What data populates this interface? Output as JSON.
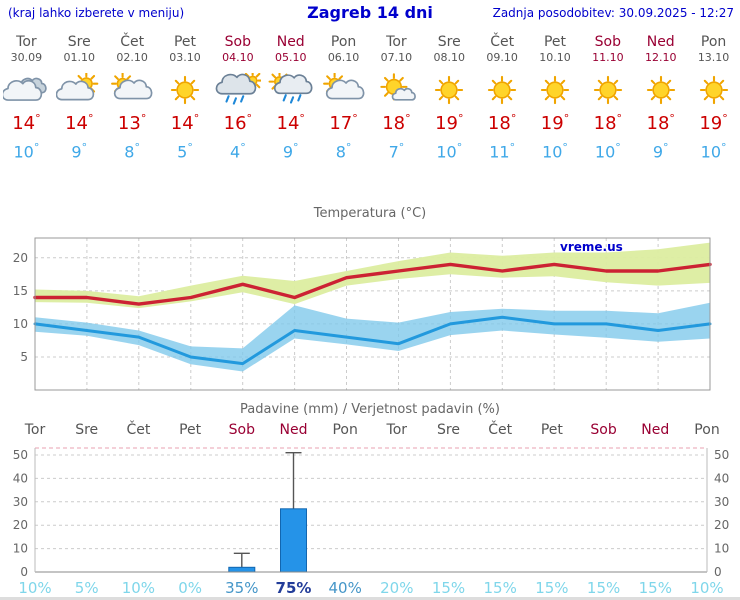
{
  "header": {
    "left_note": "(kraj lahko izberete v meniju)",
    "title": "Zagreb 14 dni",
    "updated": "Zadnja posodobitev: 30.09.2025 - 12:27"
  },
  "forecast": {
    "days": [
      {
        "name": "Tor",
        "date": "30.09",
        "weekend": false,
        "icon": "cloudy",
        "tmax": 14,
        "tmin": 10
      },
      {
        "name": "Sre",
        "date": "01.10",
        "weekend": false,
        "icon": "partly-cloudy",
        "tmax": 14,
        "tmin": 9
      },
      {
        "name": "Čet",
        "date": "02.10",
        "weekend": false,
        "icon": "mostly-cloudy",
        "tmax": 13,
        "tmin": 8
      },
      {
        "name": "Pet",
        "date": "03.10",
        "weekend": false,
        "icon": "sunny",
        "tmax": 14,
        "tmin": 5
      },
      {
        "name": "Sob",
        "date": "04.10",
        "weekend": true,
        "icon": "rain",
        "tmax": 16,
        "tmin": 4
      },
      {
        "name": "Ned",
        "date": "05.10",
        "weekend": true,
        "icon": "showers",
        "tmax": 14,
        "tmin": 9
      },
      {
        "name": "Pon",
        "date": "06.10",
        "weekend": false,
        "icon": "mostly-cloudy",
        "tmax": 17,
        "tmin": 8
      },
      {
        "name": "Tor",
        "date": "07.10",
        "weekend": false,
        "icon": "sun-cloud",
        "tmax": 18,
        "tmin": 7
      },
      {
        "name": "Sre",
        "date": "08.10",
        "weekend": false,
        "icon": "sunny",
        "tmax": 19,
        "tmin": 10
      },
      {
        "name": "Čet",
        "date": "09.10",
        "weekend": false,
        "icon": "sunny",
        "tmax": 18,
        "tmin": 11
      },
      {
        "name": "Pet",
        "date": "10.10",
        "weekend": false,
        "icon": "sunny",
        "tmax": 19,
        "tmin": 10
      },
      {
        "name": "Sob",
        "date": "11.10",
        "weekend": true,
        "icon": "sunny",
        "tmax": 18,
        "tmin": 10
      },
      {
        "name": "Ned",
        "date": "12.10",
        "weekend": true,
        "icon": "sunny",
        "tmax": 18,
        "tmin": 9
      },
      {
        "name": "Pon",
        "date": "13.10",
        "weekend": false,
        "icon": "sunny",
        "tmax": 19,
        "tmin": 10
      }
    ]
  },
  "chart_data": [
    {
      "type": "line",
      "title": "Temperatura (°C)",
      "watermark": "vreme.us",
      "x_labels": [
        "Tor 30.09",
        "Sre 01.10",
        "Čet 02.10",
        "Pet 03.10",
        "Sob 04.10",
        "Ned 05.10",
        "Pon 06.10",
        "Tor 07.10",
        "Sre 08.10",
        "Čet 09.10",
        "Pet 10.10",
        "Sob 11.10",
        "Ned 12.10",
        "Pon 13.10"
      ],
      "ylim": [
        0,
        23
      ],
      "yticks": [
        5,
        10,
        15,
        20
      ],
      "grid": true,
      "series": [
        {
          "name": "max_temp",
          "values": [
            14,
            14,
            13,
            14,
            16,
            14,
            17,
            18,
            19,
            18,
            19,
            18,
            18,
            19
          ]
        },
        {
          "name": "max_range_upper",
          "values": [
            15.2,
            15,
            14.2,
            15.8,
            17.3,
            16.5,
            18,
            19.5,
            20.8,
            20.3,
            20.8,
            20.8,
            21.3,
            22.3
          ]
        },
        {
          "name": "max_range_lower",
          "values": [
            13.3,
            13.2,
            12.4,
            13.4,
            14.8,
            13,
            15.8,
            16.8,
            17.5,
            17,
            17.2,
            16.3,
            15.8,
            16.2
          ]
        },
        {
          "name": "min_temp",
          "values": [
            10,
            9,
            8,
            5,
            4,
            9,
            8,
            7,
            10,
            11,
            10,
            10,
            9,
            10
          ]
        },
        {
          "name": "min_range_upper",
          "values": [
            11,
            10.2,
            9,
            6.6,
            6.3,
            12.8,
            10.8,
            10.2,
            11.8,
            12.3,
            12,
            12,
            11.6,
            13.2
          ]
        },
        {
          "name": "min_range_lower",
          "values": [
            8.8,
            8.2,
            6.8,
            3.9,
            2.8,
            7.8,
            6.9,
            5.9,
            8.3,
            9,
            8.4,
            7.9,
            7.3,
            7.8
          ]
        }
      ]
    },
    {
      "type": "bar",
      "title": "Padavine (mm) / Verjetnost padavin (%)",
      "categories": [
        "Tor",
        "Sre",
        "Čet",
        "Pet",
        "Sob",
        "Ned",
        "Pon",
        "Tor",
        "Sre",
        "Čet",
        "Pet",
        "Sob",
        "Ned",
        "Pon"
      ],
      "weekend": [
        false,
        false,
        false,
        false,
        true,
        true,
        false,
        false,
        false,
        false,
        false,
        true,
        true,
        false
      ],
      "values_mm": [
        0,
        0,
        0,
        0,
        2,
        27,
        0,
        0,
        0,
        0,
        0,
        0,
        0,
        0
      ],
      "whisker_low": [
        null,
        null,
        null,
        null,
        0,
        13,
        null,
        null,
        null,
        null,
        null,
        null,
        null,
        null
      ],
      "whisker_high": [
        null,
        null,
        null,
        null,
        8,
        51,
        null,
        null,
        null,
        null,
        null,
        null,
        null,
        null
      ],
      "probabilities_pct": [
        10,
        5,
        10,
        0,
        35,
        75,
        40,
        20,
        15,
        15,
        15,
        15,
        15,
        10
      ],
      "ylim": [
        0,
        53
      ],
      "yticks": [
        0,
        10,
        20,
        30,
        40,
        50
      ]
    }
  ],
  "colors": {
    "link_blue": "#0000cc",
    "day_label": "#555555",
    "weekend_label": "#990033",
    "tmax_red": "#cc0000",
    "tmin_blue": "#3fa8e8",
    "temp_max_line": "#cc2233",
    "temp_max_band": "#dceda0",
    "temp_min_line": "#2299dd",
    "temp_min_band": "#7ec8ea",
    "bar_fill": "#2593e8",
    "bar_border": "#1266b0",
    "whisker": "#555555",
    "prob_low": "#7fd6ea",
    "prob_mid": "#4596c8",
    "prob_high": "#223c99",
    "grid": "#cccccc",
    "axis": "#999999",
    "top_dashed_pink": "#e8a0b0",
    "chart_text": "#666666"
  }
}
